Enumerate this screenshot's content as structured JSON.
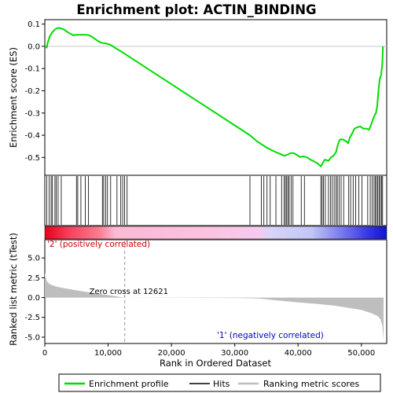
{
  "chart_data": {
    "type": "line",
    "title": "Enrichment plot: ACTIN_BINDING",
    "xlabel": "Rank in Ordered Dataset",
    "ylabel_top": "Enrichment score (ES)",
    "ylabel_bottom": "Ranked list metric (tTest)",
    "x_ticks": [
      "0",
      "10,000",
      "20,000",
      "30,000",
      "40,000",
      "50,000"
    ],
    "x_tick_values": [
      0,
      10000,
      20000,
      30000,
      40000,
      50000
    ],
    "xlim": [
      0,
      54000
    ],
    "es_ylim": [
      -0.58,
      0.12
    ],
    "es_ticks": [
      "0.1",
      "0.0",
      "-0.1",
      "-0.2",
      "-0.3",
      "-0.4",
      "-0.5"
    ],
    "es_tick_values": [
      0.1,
      0.0,
      -0.1,
      -0.2,
      -0.3,
      -0.4,
      -0.5
    ],
    "metric_ylim": [
      -5.8,
      7.3
    ],
    "metric_ticks": [
      "5.0",
      "2.5",
      "0.0",
      "-2.5",
      "-5.0"
    ],
    "metric_tick_values": [
      5.0,
      2.5,
      0.0,
      -2.5,
      -5.0
    ],
    "zero_cross_label": "Zero cross at 12621",
    "zero_cross_rank": 12621,
    "pos_label": "'2' (positively correlated)",
    "neg_label": "'1' (negatively correlated)",
    "series": [
      {
        "name": "Enrichment profile",
        "color": "#00dd00",
        "x": [
          0,
          300,
          500,
          800,
          1100,
          1400,
          1700,
          2000,
          2300,
          2600,
          3000,
          3500,
          4000,
          4500,
          5000,
          5500,
          6000,
          6500,
          7000,
          7500,
          8000,
          8500,
          9000,
          9500,
          10000,
          10500,
          11000,
          12000,
          32400,
          33500,
          35000,
          36500,
          37800,
          38300,
          38800,
          39300,
          39800,
          40300,
          40800,
          41300,
          42000,
          43000,
          43600,
          43900,
          44200,
          44500,
          44800,
          45200,
          45600,
          46000,
          46300,
          46600,
          47000,
          47500,
          47900,
          48200,
          48500,
          48900,
          49300,
          49800,
          50300,
          50800,
          51200,
          51500,
          51800,
          52100,
          52300,
          52500,
          52700,
          52900,
          53100,
          53300,
          53400
        ],
        "y": [
          0.0,
          -0.005,
          0.02,
          0.045,
          0.06,
          0.07,
          0.078,
          0.082,
          0.083,
          0.08,
          0.076,
          0.066,
          0.057,
          0.05,
          0.052,
          0.052,
          0.052,
          0.052,
          0.05,
          0.042,
          0.032,
          0.022,
          0.015,
          0.014,
          0.01,
          0.005,
          -0.005,
          -0.022,
          -0.4,
          -0.427,
          -0.455,
          -0.476,
          -0.492,
          -0.488,
          -0.48,
          -0.48,
          -0.488,
          -0.498,
          -0.495,
          -0.498,
          -0.51,
          -0.525,
          -0.54,
          -0.525,
          -0.51,
          -0.512,
          -0.515,
          -0.5,
          -0.492,
          -0.475,
          -0.44,
          -0.42,
          -0.418,
          -0.425,
          -0.435,
          -0.408,
          -0.395,
          -0.37,
          -0.365,
          -0.36,
          -0.37,
          -0.37,
          -0.375,
          -0.355,
          -0.33,
          -0.31,
          -0.3,
          -0.27,
          -0.2,
          -0.148,
          -0.13,
          -0.08,
          0.0
        ]
      }
    ],
    "hits": [
      300,
      700,
      1000,
      1200,
      1600,
      1800,
      2100,
      2600,
      5000,
      5200,
      5700,
      6400,
      6900,
      9100,
      9300,
      9600,
      9900,
      10400,
      11400,
      12000,
      12300,
      12600,
      13000,
      32400,
      34200,
      34600,
      35100,
      35600,
      36500,
      37400,
      37800,
      38000,
      38200,
      38400,
      38600,
      38900,
      39200,
      40500,
      41000,
      43600,
      43800,
      44000,
      44300,
      44800,
      45100,
      45400,
      45700,
      46000,
      46200,
      46500,
      46800,
      47200,
      48000,
      48300,
      48700,
      49100,
      49600,
      50100,
      51000,
      51400,
      51700,
      52000,
      52200,
      52400,
      52600,
      52800,
      53000,
      53200,
      53350
    ],
    "metric": {
      "color": "#bebebe",
      "x": [
        0,
        100,
        300,
        600,
        1000,
        2000,
        4000,
        7000,
        10000,
        12621,
        14000,
        30000,
        33800,
        36000,
        40000,
        43000,
        46000,
        48000,
        50000,
        51500,
        52500,
        53000,
        53300,
        53500
      ],
      "y": [
        3.2,
        2.6,
        2.1,
        1.8,
        1.6,
        1.35,
        1.05,
        0.65,
        0.3,
        0.0,
        -0.02,
        -0.05,
        -0.12,
        -0.3,
        -0.62,
        -0.8,
        -1.05,
        -1.3,
        -1.55,
        -1.95,
        -2.3,
        -2.7,
        -3.5,
        -5.4
      ]
    },
    "legend": [
      {
        "label": "Enrichment profile",
        "color": "#00dd00"
      },
      {
        "label": "Hits",
        "color": "#000000"
      },
      {
        "label": "Ranking metric scores",
        "color": "#bebebe"
      }
    ]
  }
}
